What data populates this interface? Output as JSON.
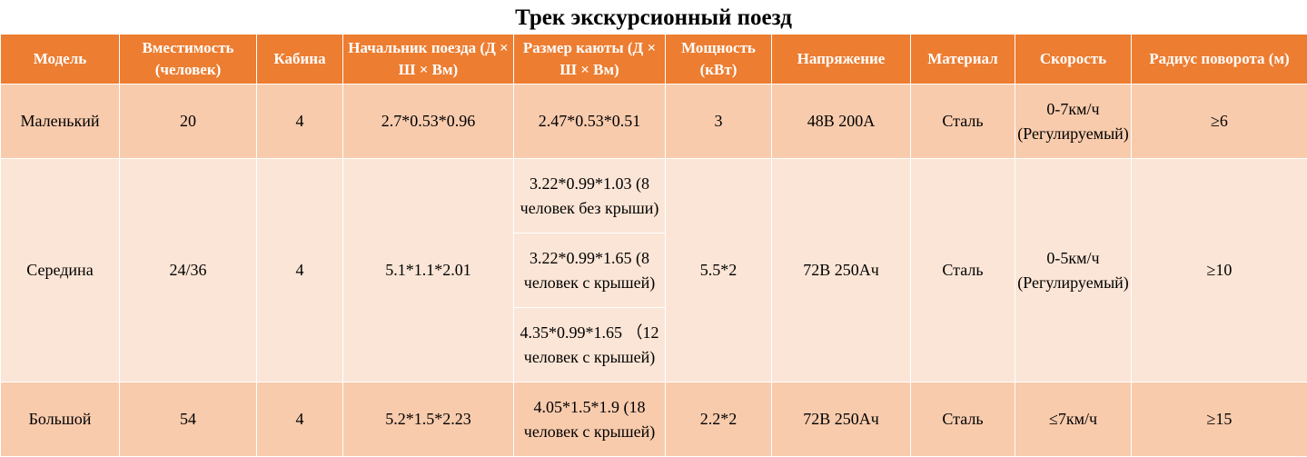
{
  "title": "Трек экскурсионный поезд",
  "header": {
    "model": "Модель",
    "capacity": "Вместимость (человек)",
    "cab": "Кабина",
    "head": "Начальник поезда (Д × Ш × Вм)",
    "cabin_size": "Размер каюты (Д × Ш × Вм)",
    "power": "Мощность (кВт)",
    "voltage": "Напряжение",
    "material": "Материал",
    "speed": "Скорость",
    "radius": "Радиус поворота (м)"
  },
  "rows": {
    "small": {
      "model": "Маленький",
      "capacity": "20",
      "cab": "4",
      "head": "2.7*0.53*0.96",
      "cabin_size": "2.47*0.53*0.51",
      "power": "3",
      "voltage": "48В 200А",
      "material": "Сталь",
      "speed": "0-7км/ч (Регулируемый)",
      "radius": "≥6"
    },
    "mid": {
      "model": "Середина",
      "capacity": "24/36",
      "cab": "4",
      "head": "5.1*1.1*2.01",
      "cabin_sizes": [
        "3.22*0.99*1.03 (8 человек без крыши)",
        "3.22*0.99*1.65 (8 человек с крышей)",
        "4.35*0.99*1.65 （12 человек с крышей)"
      ],
      "power": "5.5*2",
      "voltage": "72В 250Ач",
      "material": "Сталь",
      "speed": "0-5км/ч (Регулируемый)",
      "radius": "≥10"
    },
    "big": {
      "model": "Большой",
      "capacity": "54",
      "cab": "4",
      "head": "5.2*1.5*2.23",
      "cabin_size": "4.05*1.5*1.9 (18 человек с крышей)",
      "power": "2.2*2",
      "voltage": "72В 250Ач",
      "material": "Сталь",
      "speed": "≤7км/ч",
      "radius": "≥15"
    }
  }
}
